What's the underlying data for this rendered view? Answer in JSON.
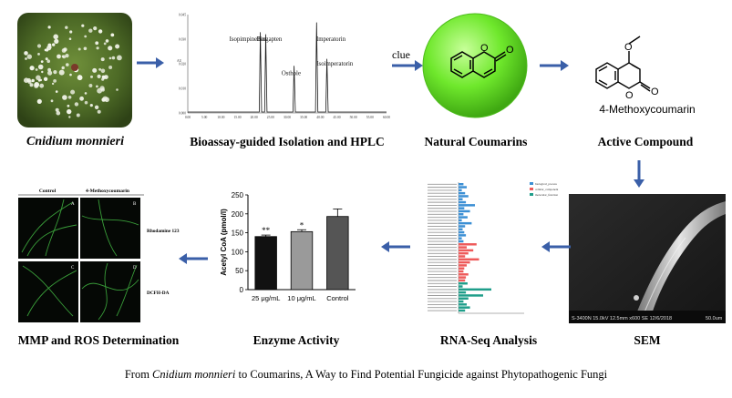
{
  "plant": {
    "label": "Cnidium monnieri"
  },
  "hplc": {
    "label": "Bioassay-guided Isolation and HPLC",
    "peaks": [
      "Isopimpinellin",
      "Bergapten",
      "Osthole",
      "Imperatorin",
      "Isoimperatorin"
    ],
    "yticks": [
      "0.045",
      "0.030",
      "0.020",
      "0.010",
      "0.000"
    ],
    "xticks": [
      "0.00",
      "5.00",
      "10.00",
      "15.00",
      "20.00",
      "25.00",
      "30.00",
      "35.00",
      "40.00",
      "45.00",
      "50.00",
      "55.00",
      "60.00"
    ]
  },
  "clue": {
    "label": "clue"
  },
  "natural": {
    "label": "Natural Coumarins"
  },
  "active": {
    "label": "Active Compound",
    "compound_name": "4-Methoxycoumarin"
  },
  "sem": {
    "label": "SEM",
    "info_left": "S-3400N 15.0kV 12.5mm x600 SE  12/6/2018",
    "info_right": "50.0um"
  },
  "rnaseq": {
    "label": "RNA-Seq Analysis",
    "legend": [
      "biological_process",
      "cellular_component",
      "molecular_function"
    ],
    "colors": {
      "bp": "#3b8fd4",
      "cc": "#ee5a5a",
      "mf": "#1f9e8a"
    }
  },
  "enzyme": {
    "label": "Enzyme Activity",
    "chart_data": {
      "type": "bar",
      "categories": [
        "25 μg/mL",
        "10 μg/mL",
        "Control"
      ],
      "values": [
        140,
        153,
        193
      ],
      "errors": [
        4,
        5,
        20
      ],
      "significance": [
        "**",
        "*",
        ""
      ],
      "ylabel": "Acetyl CoA (pmol/l)",
      "ylim": [
        0,
        250
      ],
      "yticks": [
        0,
        50,
        100,
        150,
        200,
        250
      ],
      "colors": [
        "#111111",
        "#9a9a9a",
        "#555555"
      ]
    }
  },
  "mmp": {
    "label": "MMP and ROS Determination",
    "col_headers": [
      "Control",
      "4-Methoxycoumarin"
    ],
    "row_labels": [
      "Rhodamine 123",
      "DCFH-DA"
    ],
    "panel_letters": [
      "A",
      "B",
      "C",
      "D"
    ]
  },
  "footer": {
    "prefix": "From ",
    "italic": "Cnidium monnieri",
    "suffix": " to Coumarins, A Way to Find Potential Fungicide against Phytopathogenic Fungi"
  }
}
